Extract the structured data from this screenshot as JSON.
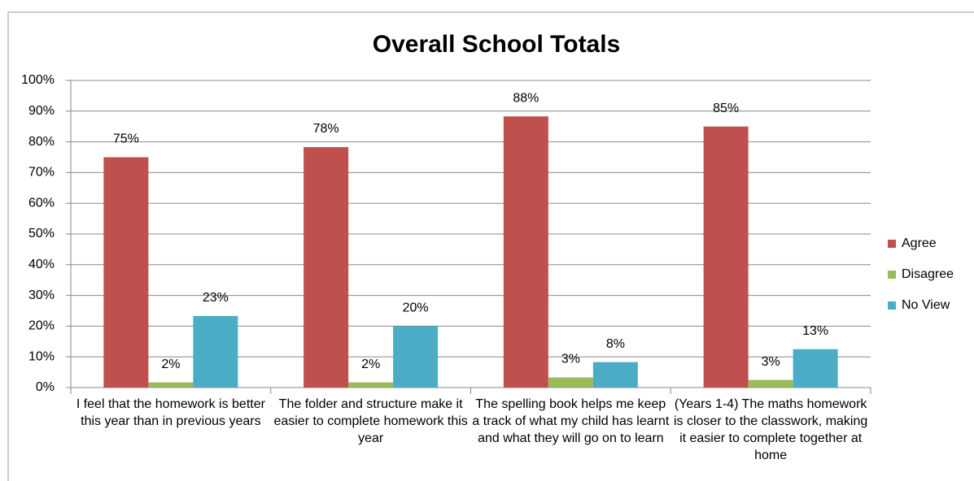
{
  "chart_data": {
    "type": "bar",
    "title": "Overall School Totals",
    "categories": [
      "I feel that the homework is better this year than in previous years",
      "The folder and structure make it easier to complete homework this year",
      "The spelling book helps me keep a track of what my child has learnt and what they will go on to learn",
      "(Years 1-4) The maths homework is closer to the classwork, making it easier to complete together at home"
    ],
    "series": [
      {
        "name": "Agree",
        "color": "#c0504d",
        "values": [
          75,
          78.3,
          88.3,
          85
        ],
        "value_labels": [
          "75%",
          "78%",
          "88%",
          "85%"
        ]
      },
      {
        "name": "Disagree",
        "color": "#9bbb59",
        "values": [
          1.7,
          1.7,
          3.3,
          2.5
        ],
        "value_labels": [
          "2%",
          "2%",
          "3%",
          "3%"
        ]
      },
      {
        "name": "No View",
        "color": "#4bacc6",
        "values": [
          23.3,
          20,
          8.3,
          12.5
        ],
        "value_labels": [
          "23%",
          "20%",
          "8%",
          "13%"
        ]
      }
    ],
    "ylim": [
      0,
      100
    ],
    "yticks": [
      {
        "value": 0,
        "label": "0%"
      },
      {
        "value": 10,
        "label": "10%"
      },
      {
        "value": 20,
        "label": "20%"
      },
      {
        "value": 30,
        "label": "30%"
      },
      {
        "value": 40,
        "label": "40%"
      },
      {
        "value": 50,
        "label": "50%"
      },
      {
        "value": 60,
        "label": "60%"
      },
      {
        "value": 70,
        "label": "70%"
      },
      {
        "value": 80,
        "label": "80%"
      },
      {
        "value": 90,
        "label": "90%"
      },
      {
        "value": 100,
        "label": "100%"
      }
    ],
    "grid": true,
    "legend": "right"
  }
}
